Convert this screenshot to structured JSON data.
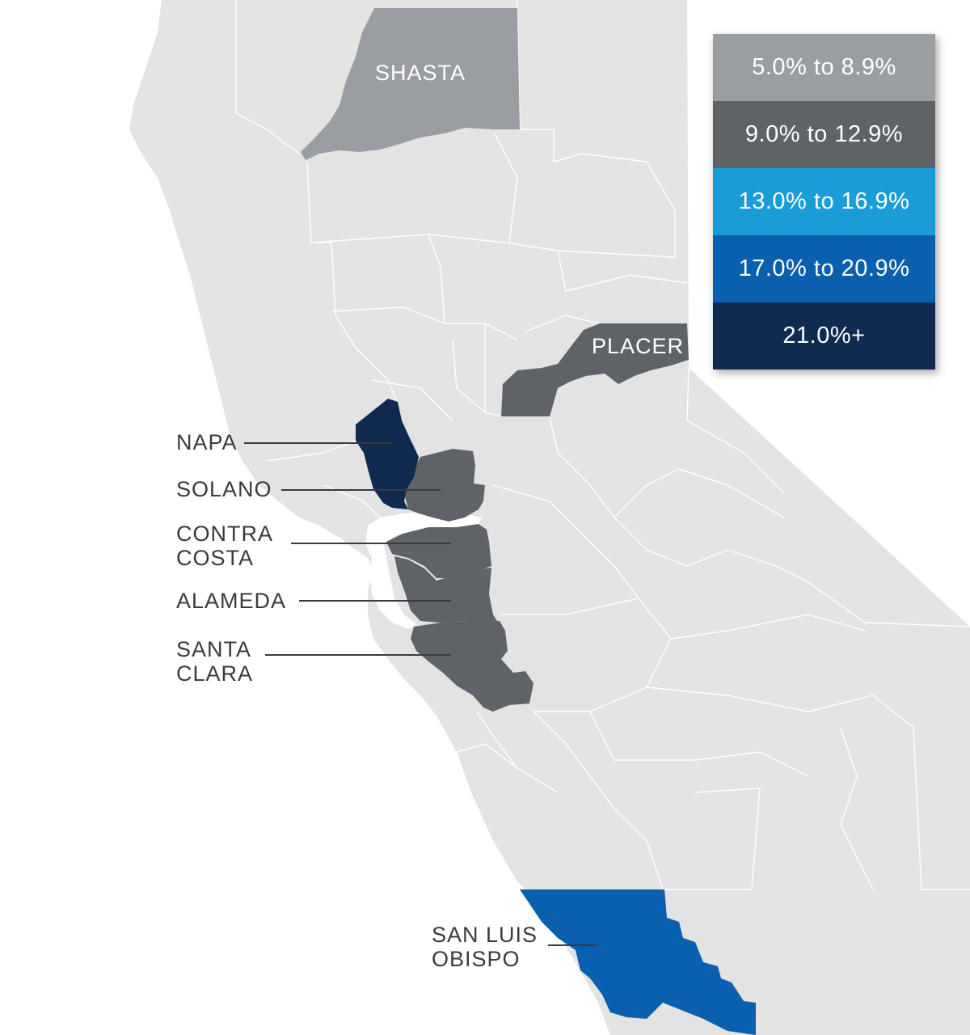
{
  "legend": {
    "items": [
      {
        "label": "5.0% to 8.9%",
        "color": "#9a9ea3"
      },
      {
        "label": "9.0% to 12.9%",
        "color": "#5f6368"
      },
      {
        "label": "13.0% to 16.9%",
        "color": "#1a9cd8"
      },
      {
        "label": "17.0% to 20.9%",
        "color": "#0a5fae"
      },
      {
        "label": "21.0%+",
        "color": "#112a50"
      }
    ]
  },
  "counties": {
    "shasta": {
      "name": "SHASTA",
      "bin": "5.0% to 8.9%"
    },
    "placer": {
      "name": "PLACER",
      "bin": "9.0% to 12.9%"
    },
    "napa": {
      "name": "NAPA",
      "bin": "21.0%+"
    },
    "solano": {
      "name": "SOLANO",
      "bin": "9.0% to 12.9%"
    },
    "contra_costa": {
      "name_line1": "CONTRA",
      "name_line2": "COSTA",
      "bin": "9.0% to 12.9%"
    },
    "alameda": {
      "name": "ALAMEDA",
      "bin": "9.0% to 12.9%"
    },
    "santa_clara": {
      "name_line1": "SANTA",
      "name_line2": "CLARA",
      "bin": "9.0% to 12.9%"
    },
    "san_luis_obispo": {
      "name_line1": "SAN LUIS",
      "name_line2": "OBISPO",
      "bin": "17.0% to 20.9%"
    }
  },
  "colors": {
    "land": "#e3e3e4",
    "water": "#ffffff",
    "border": "#ffffff",
    "label_text": "#3a3b3d"
  }
}
